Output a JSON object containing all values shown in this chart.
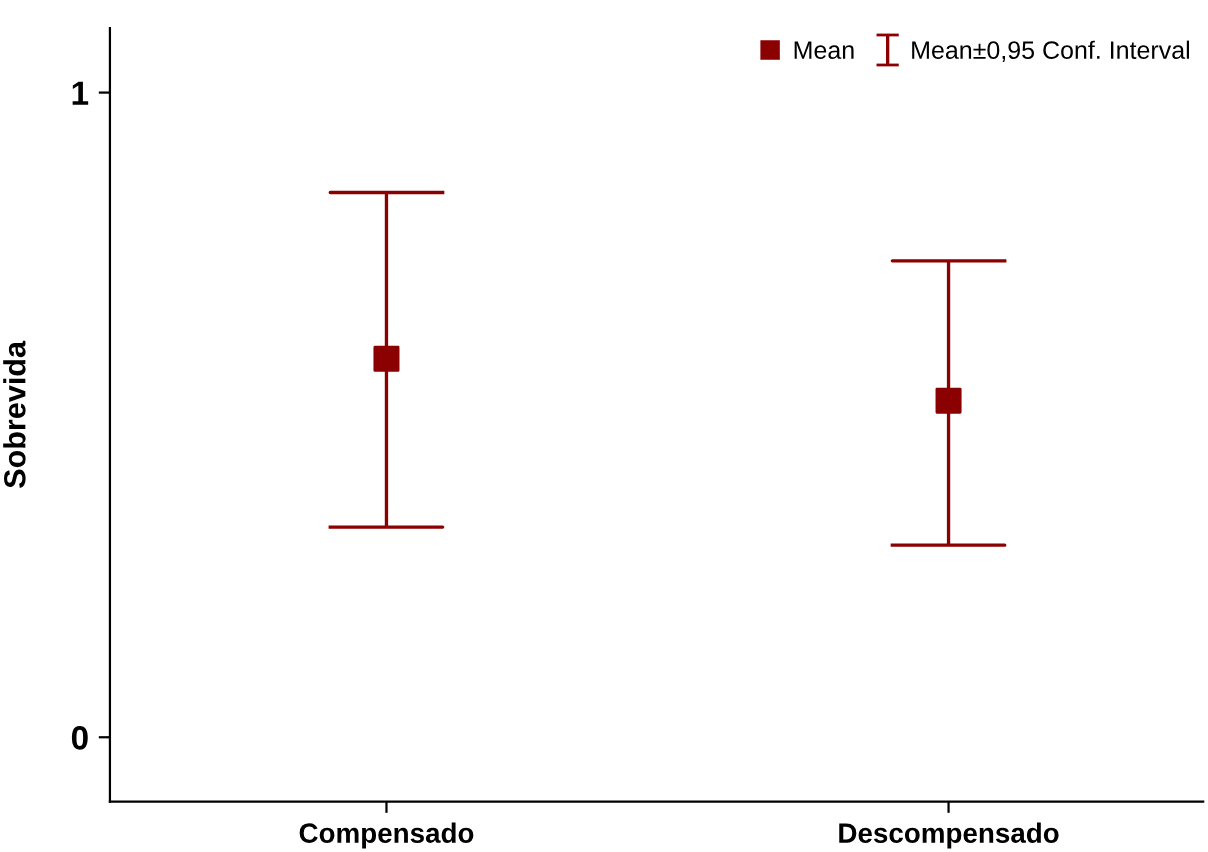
{
  "chart_data": {
    "type": "scatter",
    "ylabel": "Sobrevida",
    "categories": [
      "Compensado",
      "Descompensado"
    ],
    "series": [
      {
        "name": "Mean",
        "color": "#8b0000",
        "values": [
          0.587,
          0.522
        ],
        "errors": [
          [
            0.326,
            0.845
          ],
          [
            0.298,
            0.739
          ]
        ]
      }
    ],
    "annotations": [
      "Mean±0,95 Conf. Interval"
    ],
    "marker": "square",
    "ylim": [
      -0.1,
      1.1
    ],
    "yticks": [
      0,
      1
    ],
    "grid": false,
    "legend": "top right"
  }
}
